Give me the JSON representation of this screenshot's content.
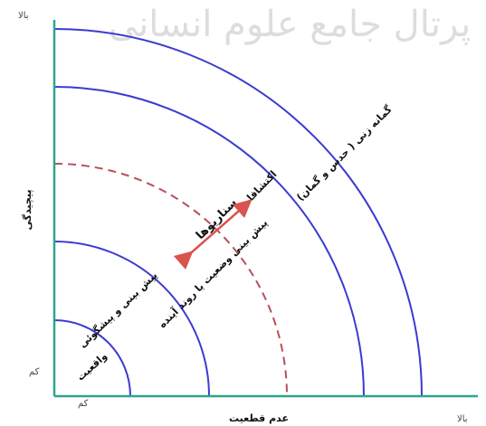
{
  "diagram": {
    "watermark": "پرتال جامع علوم انسانی",
    "y_axis": {
      "title": "پیچیدگی",
      "high_label": "بالا",
      "low_label": "کم"
    },
    "x_axis": {
      "title": "عدم قطعیت",
      "high_label": "بالا",
      "low_label": "کم"
    },
    "zones": {
      "reality": "واقعیت",
      "prediction": "پیش بینی و پیشگوئی",
      "trend": "پیش بینی وضعیت یا روند آینده",
      "scenarios": "سناریوها",
      "explorations": "اکتشافات",
      "speculation": "گمانه زنی ( حدس و گمان)"
    },
    "colors": {
      "arcs": "#3b3bd0",
      "dashed_arc": "#b5505a",
      "axes": "#2fa58a",
      "arrow": "#d9534f"
    }
  }
}
